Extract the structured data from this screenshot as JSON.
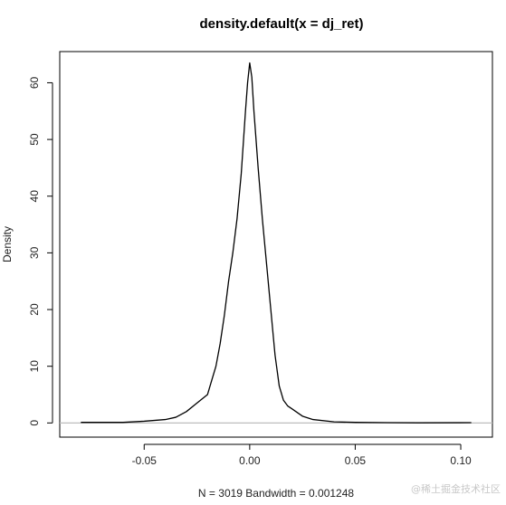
{
  "chart_data": {
    "type": "line",
    "title": "density.default(x = dj_ret)",
    "xlabel": "N = 3019   Bandwidth = 0.001248",
    "ylabel": "Density",
    "xlim": [
      -0.09,
      0.115
    ],
    "ylim": [
      -2.5,
      65.5
    ],
    "x_ticks": [
      -0.05,
      0.0,
      0.05,
      0.1
    ],
    "x_tick_labels": [
      "-0.05",
      "0.00",
      "0.05",
      "0.10"
    ],
    "y_ticks": [
      0,
      10,
      20,
      30,
      40,
      50,
      60
    ],
    "y_tick_labels": [
      "0",
      "10",
      "20",
      "30",
      "40",
      "50",
      "60"
    ],
    "series": [
      {
        "x": [
          -0.08,
          -0.06,
          -0.05,
          -0.04,
          -0.035,
          -0.03,
          -0.025,
          -0.02,
          -0.018,
          -0.016,
          -0.014,
          -0.012,
          -0.01,
          -0.008,
          -0.006,
          -0.004,
          -0.002,
          -0.001,
          0.0,
          0.001,
          0.002,
          0.004,
          0.006,
          0.008,
          0.01,
          0.012,
          0.014,
          0.016,
          0.018,
          0.02,
          0.025,
          0.03,
          0.04,
          0.05,
          0.065,
          0.08,
          0.105
        ],
        "y": [
          0.1,
          0.1,
          0.3,
          0.6,
          1.0,
          2.0,
          3.5,
          5.0,
          7.5,
          10.0,
          14.0,
          19.0,
          25.0,
          30.0,
          36.0,
          44.0,
          55.0,
          60.0,
          63.5,
          61.0,
          55.0,
          45.0,
          36.0,
          28.0,
          20.0,
          12.0,
          6.5,
          4.0,
          3.0,
          2.5,
          1.2,
          0.6,
          0.2,
          0.1,
          0.05,
          0.02,
          0.05
        ]
      }
    ],
    "grid": false
  },
  "watermark": "@稀土掘金技术社区"
}
